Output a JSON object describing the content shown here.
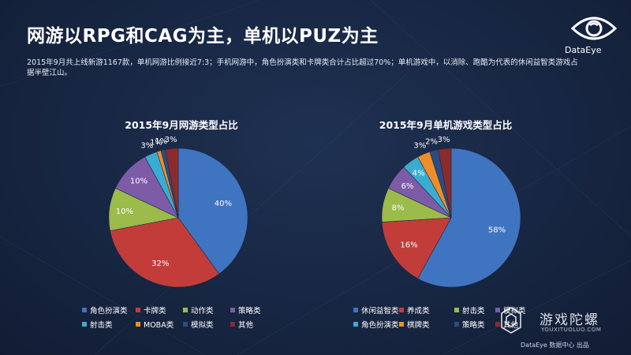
{
  "header": {
    "title": "网游以RPG和CAG为主，单机以PUZ为主",
    "subtitle": "2015年9月共上线新游1167款，单机网游比例接近7:3；手机网游中，角色扮演类和卡牌类合计占比超过70%；单机游戏中，以消除、跑酷为代表的休闲益智类游戏占据半壁江山。",
    "logo_text": "DataEye"
  },
  "colors": {
    "blue": "#3f74c0",
    "red": "#c23d3a",
    "green": "#9bbb4a",
    "purple": "#7d5ba7",
    "cyan": "#3aacd1",
    "orange": "#ef8d28",
    "navy": "#2a4d86",
    "darkred": "#8c2b2d"
  },
  "chart_data": [
    {
      "type": "pie",
      "title": "2015年9月网游类型占比",
      "categories": [
        "角色扮演类",
        "卡牌类",
        "动作类",
        "策略类",
        "射击类",
        "MOBA类",
        "模拟类",
        "其他"
      ],
      "values": [
        40,
        32,
        10,
        10,
        3,
        1,
        1,
        3
      ],
      "labels": [
        "40%",
        "32%",
        "10%",
        "10%",
        "3%",
        "1%",
        "1%",
        "3%"
      ],
      "colors": [
        "#3f74c0",
        "#c23d3a",
        "#9bbb4a",
        "#7d5ba7",
        "#3aacd1",
        "#ef8d28",
        "#2a4d86",
        "#8c2b2d"
      ],
      "legend_position": "bottom"
    },
    {
      "type": "pie",
      "title": "2015年9月单机游戏类型占比",
      "categories": [
        "休闲益智类",
        "养成类",
        "射击类",
        "模拟类",
        "角色扮演类",
        "棋牌类",
        "策略类",
        "其他"
      ],
      "values": [
        58,
        16,
        8,
        6,
        4,
        3,
        2,
        3
      ],
      "labels": [
        "58%",
        "16%",
        "8%",
        "6%",
        "4%",
        "3%",
        "2%",
        "3%"
      ],
      "colors": [
        "#3f74c0",
        "#c23d3a",
        "#9bbb4a",
        "#7d5ba7",
        "#3aacd1",
        "#ef8d28",
        "#2a4d86",
        "#8c2b2d"
      ],
      "legend_position": "bottom"
    }
  ],
  "watermark": {
    "text": "游戏陀螺",
    "url": "YOUXITUOLUO.COM"
  },
  "footer": {
    "credit": "DataEye 数据中心 出品"
  }
}
